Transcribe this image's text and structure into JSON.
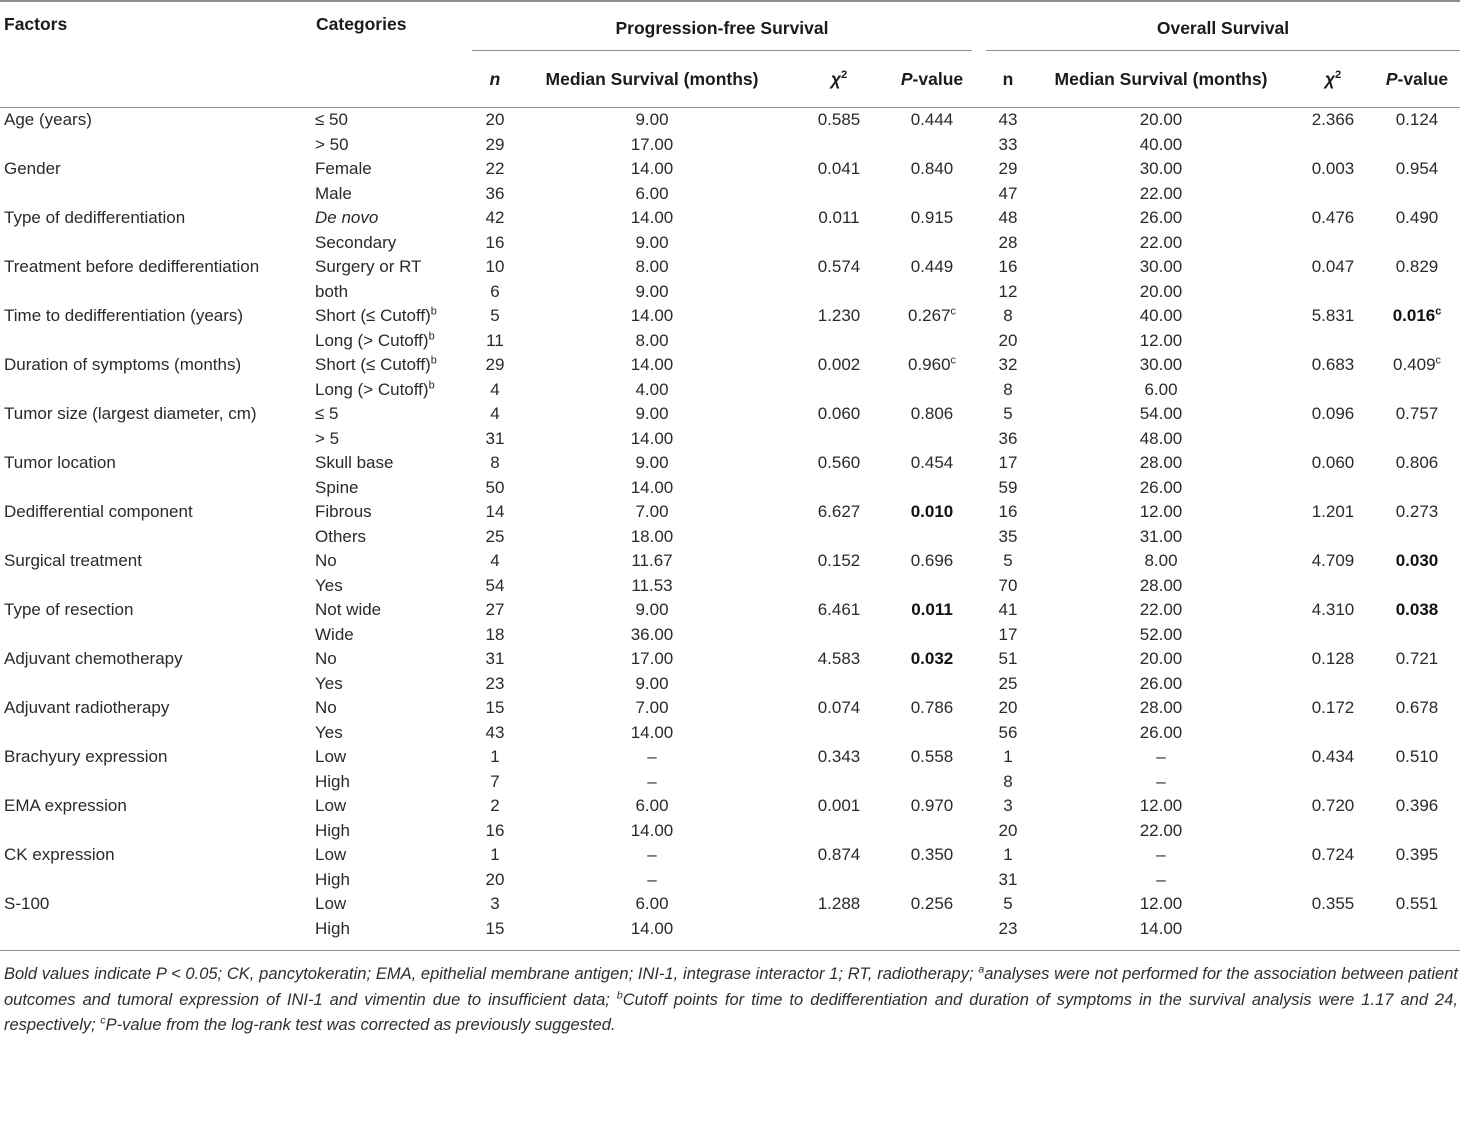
{
  "table": {
    "header": {
      "factors": "Factors",
      "categories": "Categories",
      "pfs_group": "Progression-free Survival",
      "os_group": "Overall Survival",
      "pfs": {
        "n": "{i}n",
        "median": "Median Survival (months)",
        "chi": [
          {
            "t": "χ",
            "i": true
          },
          {
            "t": "2",
            "sup": true
          }
        ],
        "pval": [
          {
            "t": "P",
            "i": true
          },
          {
            "t": "-value"
          }
        ]
      },
      "os": {
        "n": "n",
        "median": "Median Survival (months)",
        "chi": [
          {
            "t": "χ",
            "i": true
          },
          {
            "t": "2",
            "sup": true
          }
        ],
        "pval": [
          {
            "t": "P",
            "i": true
          },
          {
            "t": "-value"
          }
        ]
      }
    },
    "rows": [
      [
        "Age (years)",
        "≤ 50",
        "20",
        "9.00",
        "0.585",
        "0.444",
        "43",
        "20.00",
        "2.366",
        "0.124"
      ],
      [
        "",
        "> 50",
        "29",
        "17.00",
        "",
        "",
        "33",
        "40.00",
        "",
        ""
      ],
      [
        "Gender",
        "Female",
        "22",
        "14.00",
        "0.041",
        "0.840",
        "29",
        "30.00",
        "0.003",
        "0.954"
      ],
      [
        "",
        "Male",
        "36",
        "6.00",
        "",
        "",
        "47",
        "22.00",
        "",
        ""
      ],
      [
        "Type of dedifferentiation",
        "{i}De novo",
        "42",
        "14.00",
        "0.011",
        "0.915",
        "48",
        "26.00",
        "0.476",
        "0.490"
      ],
      [
        "",
        "Secondary",
        "16",
        "9.00",
        "",
        "",
        "28",
        "22.00",
        "",
        ""
      ],
      [
        "Treatment before dedifferentiation",
        "Surgery or RT",
        "10",
        "8.00",
        "0.574",
        "0.449",
        "16",
        "30.00",
        "0.047",
        "0.829"
      ],
      [
        "",
        "both",
        "6",
        "9.00",
        "",
        "",
        "12",
        "20.00",
        "",
        ""
      ],
      [
        "Time to dedifferentiation (years)",
        "Short (≤ Cutoff)^b",
        "5",
        "14.00",
        "1.230",
        "0.267^c",
        "8",
        "40.00",
        "5.831",
        "{b}0.016^c"
      ],
      [
        "",
        "Long (> Cutoff)^b",
        "11",
        "8.00",
        "",
        "",
        "20",
        "12.00",
        "",
        ""
      ],
      [
        "Duration of symptoms (months)",
        "Short (≤ Cutoff)^b",
        "29",
        "14.00",
        "0.002",
        "0.960^c",
        "32",
        "30.00",
        "0.683",
        "0.409^c"
      ],
      [
        "",
        "Long (> Cutoff)^b",
        "4",
        "4.00",
        "",
        "",
        "8",
        "6.00",
        "",
        ""
      ],
      [
        "Tumor size (largest diameter, cm)",
        "≤ 5",
        "4",
        "9.00",
        "0.060",
        "0.806",
        "5",
        "54.00",
        "0.096",
        "0.757"
      ],
      [
        "",
        "> 5",
        "31",
        "14.00",
        "",
        "",
        "36",
        "48.00",
        "",
        ""
      ],
      [
        "Tumor location",
        "Skull base",
        "8",
        "9.00",
        "0.560",
        "0.454",
        "17",
        "28.00",
        "0.060",
        "0.806"
      ],
      [
        "",
        "Spine",
        "50",
        "14.00",
        "",
        "",
        "59",
        "26.00",
        "",
        ""
      ],
      [
        "Dedifferential component",
        "Fibrous",
        "14",
        "7.00",
        "6.627",
        "{b}0.010",
        "16",
        "12.00",
        "1.201",
        "0.273"
      ],
      [
        "",
        "Others",
        "25",
        "18.00",
        "",
        "",
        "35",
        "31.00",
        "",
        ""
      ],
      [
        "Surgical treatment",
        "No",
        "4",
        "11.67",
        "0.152",
        "0.696",
        "5",
        "8.00",
        "4.709",
        "{b}0.030"
      ],
      [
        "",
        "Yes",
        "54",
        "11.53",
        "",
        "",
        "70",
        "28.00",
        "",
        ""
      ],
      [
        "Type of resection",
        "Not wide",
        "27",
        "9.00",
        "6.461",
        "{b}0.011",
        "41",
        "22.00",
        "4.310",
        "{b}0.038"
      ],
      [
        "",
        "Wide",
        "18",
        "36.00",
        "",
        "",
        "17",
        "52.00",
        "",
        ""
      ],
      [
        "Adjuvant chemotherapy",
        "No",
        "31",
        "17.00",
        "4.583",
        "{b}0.032",
        "51",
        "20.00",
        "0.128",
        "0.721"
      ],
      [
        "",
        "Yes",
        "23",
        "9.00",
        "",
        "",
        "25",
        "26.00",
        "",
        ""
      ],
      [
        "Adjuvant radiotherapy",
        "No",
        "15",
        "7.00",
        "0.074",
        "0.786",
        "20",
        "28.00",
        "0.172",
        "0.678"
      ],
      [
        "",
        "Yes",
        "43",
        "14.00",
        "",
        "",
        "56",
        "26.00",
        "",
        ""
      ],
      [
        "Brachyury expression",
        "Low",
        "1",
        "–",
        "0.343",
        "0.558",
        "1",
        "–",
        "0.434",
        "0.510"
      ],
      [
        "",
        "High",
        "7",
        "–",
        "",
        "",
        "8",
        "–",
        "",
        ""
      ],
      [
        "EMA expression",
        "Low",
        "2",
        "6.00",
        "0.001",
        "0.970",
        "3",
        "12.00",
        "0.720",
        "0.396"
      ],
      [
        "",
        "High",
        "16",
        "14.00",
        "",
        "",
        "20",
        "22.00",
        "",
        ""
      ],
      [
        "CK expression",
        "Low",
        "1",
        "–",
        "0.874",
        "0.350",
        "1",
        "–",
        "0.724",
        "0.395"
      ],
      [
        "",
        "High",
        "20",
        "–",
        "",
        "",
        "31",
        "–",
        "",
        ""
      ],
      [
        "S-100",
        "Low",
        "3",
        "6.00",
        "1.288",
        "0.256",
        "5",
        "12.00",
        "0.355",
        "0.551"
      ],
      [
        "",
        "High",
        "15",
        "14.00",
        "",
        "",
        "23",
        "14.00",
        "",
        ""
      ]
    ]
  },
  "footnote": {
    "segments": [
      {
        "t": "Bold values indicate P < 0.05; CK, pancytokeratin; EMA, epithelial membrane antigen; INI-1, integrase interactor 1; RT, radiotherapy; "
      },
      {
        "t": "a",
        "sup": true
      },
      {
        "t": "analyses were not performed for the association between patient outcomes and tumoral expression of INI-1 and vimentin due to insufficient data; "
      },
      {
        "t": "b",
        "sup": true
      },
      {
        "t": "Cutoff points for time to dedifferentiation and duration of symptoms in the survival analysis were 1.17 and 24, respectively; "
      },
      {
        "t": "c",
        "sup": true
      },
      {
        "t": "P-value from the log-rank test was corrected as previously suggested."
      }
    ]
  }
}
